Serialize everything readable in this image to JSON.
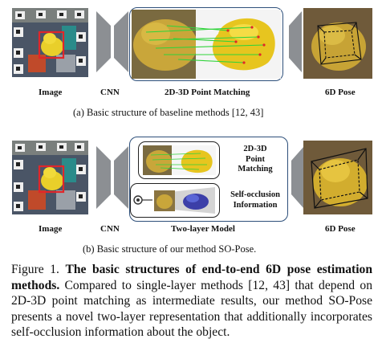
{
  "panel_a": {
    "image_label": "Image",
    "cnn_label": "CNN",
    "matching_label": "2D-3D Point Matching",
    "pose_label": "6D Pose",
    "caption": "(a)  Basic structure of baseline methods [12, 43]"
  },
  "panel_b": {
    "image_label": "Image",
    "cnn_label": "CNN",
    "matching_label_1": "2D-3D",
    "matching_label_2": "Point",
    "matching_label_3": "Matching",
    "occlusion_label_1": "Self-occlusion",
    "occlusion_label_2": "Information",
    "model_label": "Two-layer Model",
    "pose_label": "6D Pose",
    "caption": "(b)  Basic structure of our method SO-Pose."
  },
  "figure_caption": {
    "prefix": "Figure 1. ",
    "bold": "The basic structures of end-to-end 6D pose estimation methods.",
    "rest": " Compared to single-layer methods [12, 43] that depend on 2D-3D point matching as intermediate results, our method SO-Pose presents a novel two-layer representation that additionally incorporates self-occlusion information about the object."
  },
  "colors": {
    "box_border": "#2d4f7a",
    "match_lines": "#2fd33a",
    "crop_box": "#e0262a",
    "duck": "#e9cf2a"
  }
}
